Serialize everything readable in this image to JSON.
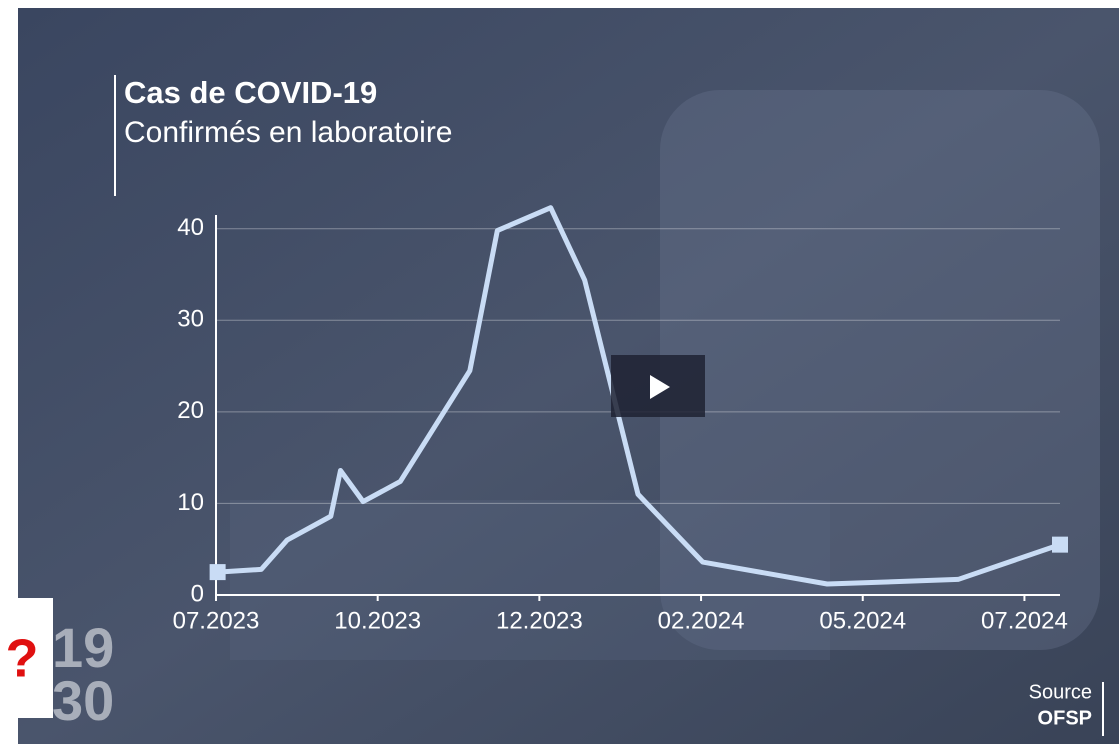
{
  "chart_data": {
    "type": "line",
    "title": "Cas de COVID-19",
    "subtitle": "Confirmés en laboratoire",
    "x": [
      0.01,
      0.28,
      0.44,
      0.71,
      0.77,
      0.91,
      1.14,
      1.57,
      1.74,
      2.07,
      2.28,
      2.61,
      3.01,
      3.78,
      4.59,
      5.22
    ],
    "series": [
      {
        "color": "#c9dcf5",
        "values": [
          2.5,
          2.8,
          6,
          8.6,
          13.6,
          10.2,
          12.4,
          24.5,
          39.8,
          42.3,
          34.4,
          11,
          3.6,
          1.2,
          1.7,
          5.5
        ]
      }
    ],
    "xlim": [
      0,
      5.22
    ],
    "xticks": [
      {
        "value": 0,
        "label": "07.2023"
      },
      {
        "value": 1,
        "label": "10.2023"
      },
      {
        "value": 2,
        "label": "12.2023"
      },
      {
        "value": 3,
        "label": "02.2024"
      },
      {
        "value": 4,
        "label": "05.2024"
      },
      {
        "value": 5,
        "label": "07.2024"
      }
    ],
    "ylim": [
      0,
      41.5
    ],
    "yticks": [
      0,
      10,
      20,
      30,
      40
    ],
    "grid": true
  },
  "branding": {
    "logo_top": "19",
    "logo_bottom": "30"
  },
  "badge": "?",
  "source": {
    "label": "Source",
    "name": "OFSP"
  }
}
